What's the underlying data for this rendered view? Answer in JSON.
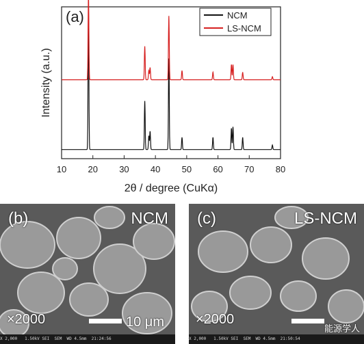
{
  "chart_data": {
    "type": "line",
    "panel_label": "(a)",
    "xlabel": "2θ / degree (CuKα)",
    "ylabel": "Intensity (a.u.)",
    "xlim": [
      10,
      80
    ],
    "xticks": [
      10,
      20,
      30,
      40,
      50,
      60,
      70,
      80
    ],
    "legend_position": "top-right",
    "series": [
      {
        "name": "NCM",
        "color": "#111111",
        "baseline": 0.06,
        "peaks": [
          [
            18.6,
            0.94
          ],
          [
            36.6,
            0.32
          ],
          [
            37.9,
            0.09
          ],
          [
            38.3,
            0.12
          ],
          [
            44.3,
            0.6
          ],
          [
            48.5,
            0.08
          ],
          [
            58.4,
            0.08
          ],
          [
            64.3,
            0.14
          ],
          [
            64.8,
            0.15
          ],
          [
            67.9,
            0.08
          ],
          [
            77.4,
            0.03
          ]
        ]
      },
      {
        "name": "LS-NCM",
        "color": "#d62020",
        "baseline": 0.52,
        "peaks": [
          [
            18.6,
            0.58
          ],
          [
            36.6,
            0.22
          ],
          [
            37.9,
            0.06
          ],
          [
            38.3,
            0.08
          ],
          [
            44.3,
            0.42
          ],
          [
            48.5,
            0.06
          ],
          [
            58.4,
            0.05
          ],
          [
            64.3,
            0.1
          ],
          [
            64.8,
            0.1
          ],
          [
            67.9,
            0.05
          ],
          [
            77.4,
            0.02
          ]
        ]
      }
    ]
  },
  "sem_panels": [
    {
      "label": "(b)",
      "sample": "NCM",
      "magnification": "×2000",
      "scale": "10 μm",
      "info_bar": "X 2,000   1.50kV SEI  SEM  WD 4.5mm  21:24:56"
    },
    {
      "label": "(c)",
      "sample": "LS-NCM",
      "magnification": "×2000",
      "scale": "",
      "info_bar": "X 2,000   1.50kV SEI  SEM  WD 4.5mm  21:50:54"
    }
  ],
  "watermark": "能源学人"
}
